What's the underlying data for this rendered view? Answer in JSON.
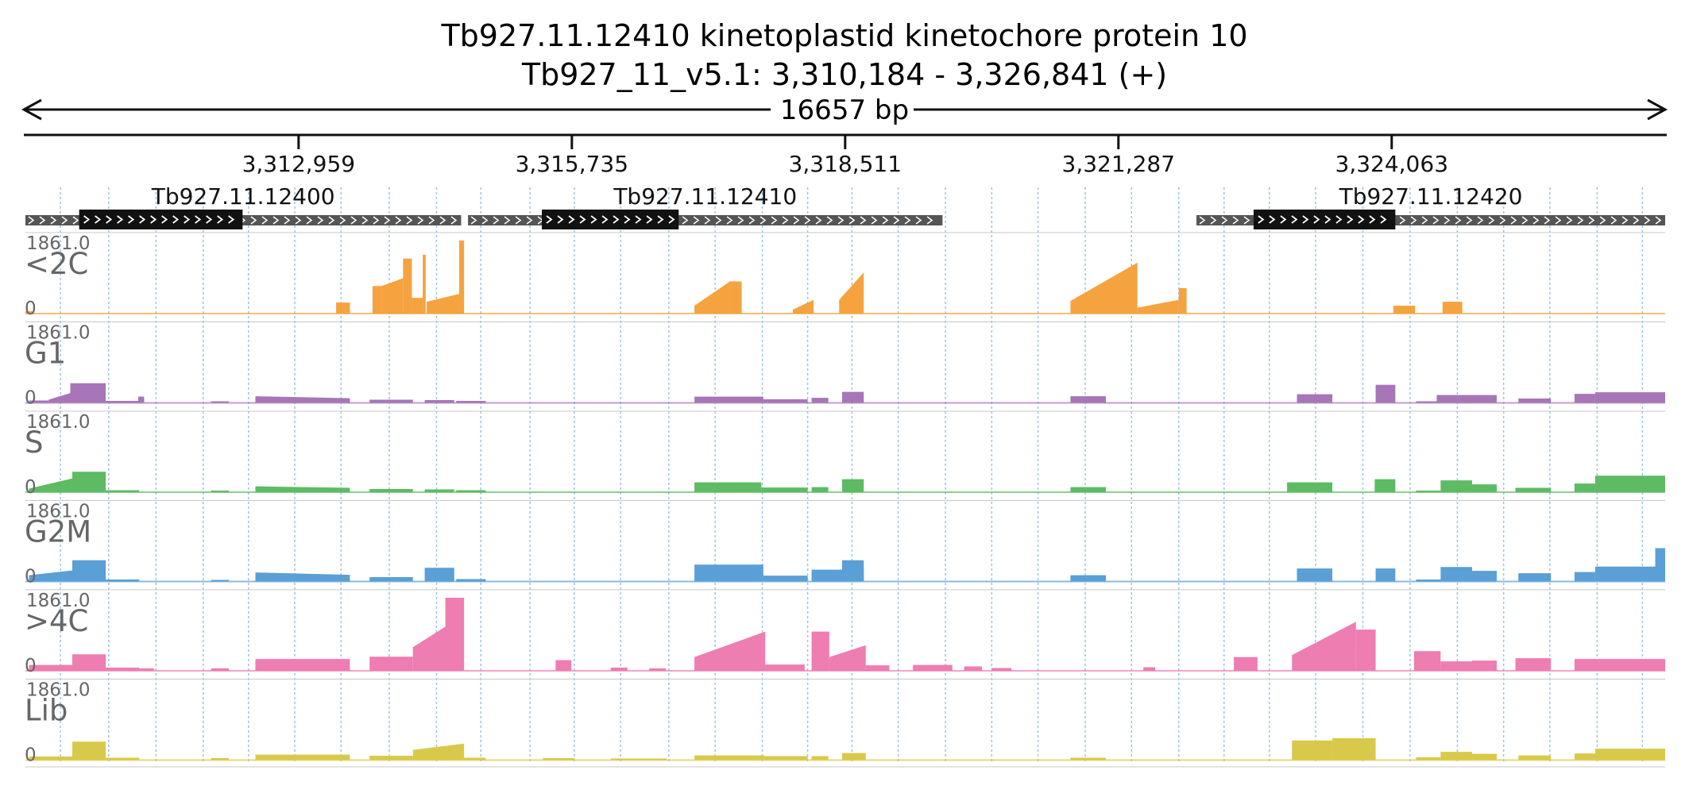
{
  "header": {
    "gene_title": "Tb927.11.12410  kinetoplastid kinetochore protein 10",
    "location": "Tb927_11_v5.1: 3,310,184 - 3,326,841 (+)",
    "span_label": "16657 bp"
  },
  "region": {
    "start": 3310184,
    "end": 3326841
  },
  "ruler": {
    "ticks": [
      {
        "pos": 3312959,
        "label": "3,312,959"
      },
      {
        "pos": 3315735,
        "label": "3,315,735"
      },
      {
        "pos": 3318511,
        "label": "3,318,511"
      },
      {
        "pos": 3321287,
        "label": "3,321,287"
      },
      {
        "pos": 3324063,
        "label": "3,324,063"
      }
    ]
  },
  "genes": [
    {
      "id": "Tb927.11.12400",
      "start": 3310184,
      "end": 3314610,
      "cds_start": 3310730,
      "cds_end": 3312390
    },
    {
      "id": "Tb927.11.12410",
      "start": 3314680,
      "end": 3319500,
      "cds_start": 3315430,
      "cds_end": 3316820
    },
    {
      "id": "Tb927.11.12420",
      "start": 3322080,
      "end": 3326841,
      "cds_start": 3322660,
      "cds_end": 3324100
    }
  ],
  "gridlines": [
    3310540,
    3311030,
    3311510,
    3311990,
    3312450,
    3312920,
    3313390,
    3313880,
    3314360,
    3314810,
    3315310,
    3315760,
    3316230,
    3316720,
    3317190,
    3317670,
    3318130,
    3318580,
    3319050,
    3319530,
    3320000,
    3320470,
    3320950,
    3321420,
    3321900,
    3322360,
    3322820,
    3323290,
    3323770,
    3324250,
    3324730,
    3325200,
    3325670,
    3326150,
    3326610
  ],
  "chart_data": {
    "type": "area",
    "max_label": "1861.0",
    "min_label": "0",
    "ylim": [
      0,
      1861
    ],
    "tracks": [
      {
        "name": "<2C",
        "color": "#F5A33F",
        "segments": [
          [
            3310184,
            3310260,
            60
          ],
          [
            3313340,
            3313480,
            280
          ],
          [
            3313710,
            3313800,
            700
          ],
          [
            3313800,
            3314020,
            700,
            900
          ],
          [
            3314020,
            3314110,
            1400
          ],
          [
            3314110,
            3314220,
            400
          ],
          [
            3314220,
            3314250,
            1500
          ],
          [
            3314260,
            3314590,
            300,
            500
          ],
          [
            3314590,
            3314640,
            1861
          ],
          [
            3316980,
            3317330,
            200,
            800
          ],
          [
            3317330,
            3317460,
            820
          ],
          [
            3317980,
            3318190,
            100,
            350
          ],
          [
            3318450,
            3318700,
            350,
            1050
          ],
          [
            3320800,
            3321480,
            320,
            1300
          ],
          [
            3321480,
            3321900,
            150,
            350
          ],
          [
            3321900,
            3321980,
            650
          ],
          [
            3324080,
            3324300,
            200
          ],
          [
            3324580,
            3324780,
            300
          ]
        ]
      },
      {
        "name": "G1",
        "color": "#A676B8",
        "segments": [
          [
            3310220,
            3310420,
            60
          ],
          [
            3310420,
            3310640,
            80,
            250
          ],
          [
            3310640,
            3311000,
            500
          ],
          [
            3311000,
            3311330,
            50
          ],
          [
            3311330,
            3311390,
            160
          ],
          [
            3312070,
            3312250,
            40
          ],
          [
            3312520,
            3313480,
            170,
            120
          ],
          [
            3313680,
            3314120,
            80
          ],
          [
            3314240,
            3314540,
            70
          ],
          [
            3314560,
            3314860,
            50
          ],
          [
            3316980,
            3317680,
            160
          ],
          [
            3317680,
            3318130,
            90
          ],
          [
            3318170,
            3318340,
            130
          ],
          [
            3318480,
            3318700,
            280
          ],
          [
            3320800,
            3321160,
            170
          ],
          [
            3323100,
            3323460,
            220
          ],
          [
            3323900,
            3324100,
            460
          ],
          [
            3324310,
            3324520,
            40
          ],
          [
            3324520,
            3324880,
            200
          ],
          [
            3324880,
            3325130,
            200
          ],
          [
            3325350,
            3325680,
            110
          ],
          [
            3325920,
            3326130,
            230
          ],
          [
            3326130,
            3326841,
            270
          ]
        ]
      },
      {
        "name": "S",
        "color": "#5DBB63",
        "segments": [
          [
            3310220,
            3310660,
            90,
            350
          ],
          [
            3310660,
            3311000,
            520
          ],
          [
            3311000,
            3311340,
            50
          ],
          [
            3312070,
            3312250,
            40
          ],
          [
            3312520,
            3313480,
            150,
            110
          ],
          [
            3313680,
            3314120,
            80
          ],
          [
            3314240,
            3314540,
            70
          ],
          [
            3314560,
            3314860,
            50
          ],
          [
            3316980,
            3317660,
            250
          ],
          [
            3317660,
            3318130,
            120
          ],
          [
            3318170,
            3318340,
            130
          ],
          [
            3318480,
            3318700,
            330
          ],
          [
            3320800,
            3321160,
            130
          ],
          [
            3323000,
            3323460,
            250
          ],
          [
            3323890,
            3324100,
            330
          ],
          [
            3324310,
            3324560,
            40
          ],
          [
            3324560,
            3324880,
            300
          ],
          [
            3324880,
            3325130,
            200
          ],
          [
            3325320,
            3325680,
            110
          ],
          [
            3325920,
            3326130,
            220
          ],
          [
            3326130,
            3326841,
            420
          ]
        ]
      },
      {
        "name": "G2M",
        "color": "#5A9FD6",
        "segments": [
          [
            3310220,
            3310660,
            160,
            280
          ],
          [
            3310660,
            3311000,
            540
          ],
          [
            3311000,
            3311340,
            50
          ],
          [
            3312070,
            3312250,
            40
          ],
          [
            3312520,
            3313480,
            230,
            170
          ],
          [
            3313680,
            3314120,
            110
          ],
          [
            3314240,
            3314540,
            350
          ],
          [
            3314560,
            3314860,
            60
          ],
          [
            3316980,
            3317680,
            430
          ],
          [
            3317680,
            3318130,
            150
          ],
          [
            3318170,
            3318700,
            300
          ],
          [
            3318480,
            3318700,
            540
          ],
          [
            3320800,
            3321160,
            160
          ],
          [
            3323100,
            3323460,
            330
          ],
          [
            3323900,
            3324100,
            330
          ],
          [
            3324310,
            3324560,
            50
          ],
          [
            3324560,
            3324880,
            370
          ],
          [
            3324880,
            3325130,
            270
          ],
          [
            3325350,
            3325680,
            210
          ],
          [
            3325920,
            3326130,
            240
          ],
          [
            3326130,
            3326841,
            380
          ],
          [
            3326740,
            3326841,
            850
          ]
        ]
      },
      {
        "name": ">4C",
        "color": "#EE7DB1",
        "segments": [
          [
            3310220,
            3310660,
            150
          ],
          [
            3310660,
            3311000,
            420
          ],
          [
            3311000,
            3311340,
            80
          ],
          [
            3311340,
            3311490,
            60
          ],
          [
            3312070,
            3312250,
            60
          ],
          [
            3312520,
            3313480,
            300
          ],
          [
            3313680,
            3314120,
            360
          ],
          [
            3314120,
            3314560,
            600,
            1300
          ],
          [
            3314450,
            3314640,
            1861
          ],
          [
            3315570,
            3315730,
            270
          ],
          [
            3316130,
            3316300,
            80
          ],
          [
            3316520,
            3316690,
            60
          ],
          [
            3316980,
            3317700,
            350,
            1000
          ],
          [
            3317700,
            3318100,
            160
          ],
          [
            3318170,
            3318350,
            1000
          ],
          [
            3318350,
            3318720,
            350,
            650
          ],
          [
            3318720,
            3318960,
            140
          ],
          [
            3319200,
            3319600,
            150
          ],
          [
            3319720,
            3319900,
            110
          ],
          [
            3320000,
            3320200,
            70
          ],
          [
            3321540,
            3321660,
            90
          ],
          [
            3322460,
            3322700,
            350
          ],
          [
            3323050,
            3323700,
            400,
            1250
          ],
          [
            3323700,
            3323900,
            1050
          ],
          [
            3324290,
            3324560,
            500
          ],
          [
            3324560,
            3324880,
            240
          ],
          [
            3324880,
            3325130,
            260
          ],
          [
            3325320,
            3325680,
            320
          ],
          [
            3325920,
            3326841,
            300
          ]
        ]
      },
      {
        "name": "Lib",
        "color": "#D9C94A",
        "segments": [
          [
            3310220,
            3310660,
            90
          ],
          [
            3310660,
            3311000,
            470
          ],
          [
            3311000,
            3311340,
            60
          ],
          [
            3312070,
            3312250,
            50
          ],
          [
            3312520,
            3313480,
            140
          ],
          [
            3313680,
            3314120,
            110
          ],
          [
            3314120,
            3314640,
            260,
            420
          ],
          [
            3314640,
            3314860,
            60
          ],
          [
            3315440,
            3315760,
            50
          ],
          [
            3316130,
            3316700,
            40
          ],
          [
            3316980,
            3317690,
            120
          ],
          [
            3317690,
            3318130,
            100
          ],
          [
            3318170,
            3318340,
            100
          ],
          [
            3318480,
            3318720,
            180
          ],
          [
            3320800,
            3321160,
            60
          ],
          [
            3323050,
            3323460,
            500
          ],
          [
            3323460,
            3323900,
            560
          ],
          [
            3324310,
            3324560,
            70
          ],
          [
            3324560,
            3324880,
            210
          ],
          [
            3324880,
            3325130,
            160
          ],
          [
            3325350,
            3325680,
            120
          ],
          [
            3325920,
            3326130,
            170
          ],
          [
            3326130,
            3326841,
            290
          ]
        ]
      }
    ]
  }
}
